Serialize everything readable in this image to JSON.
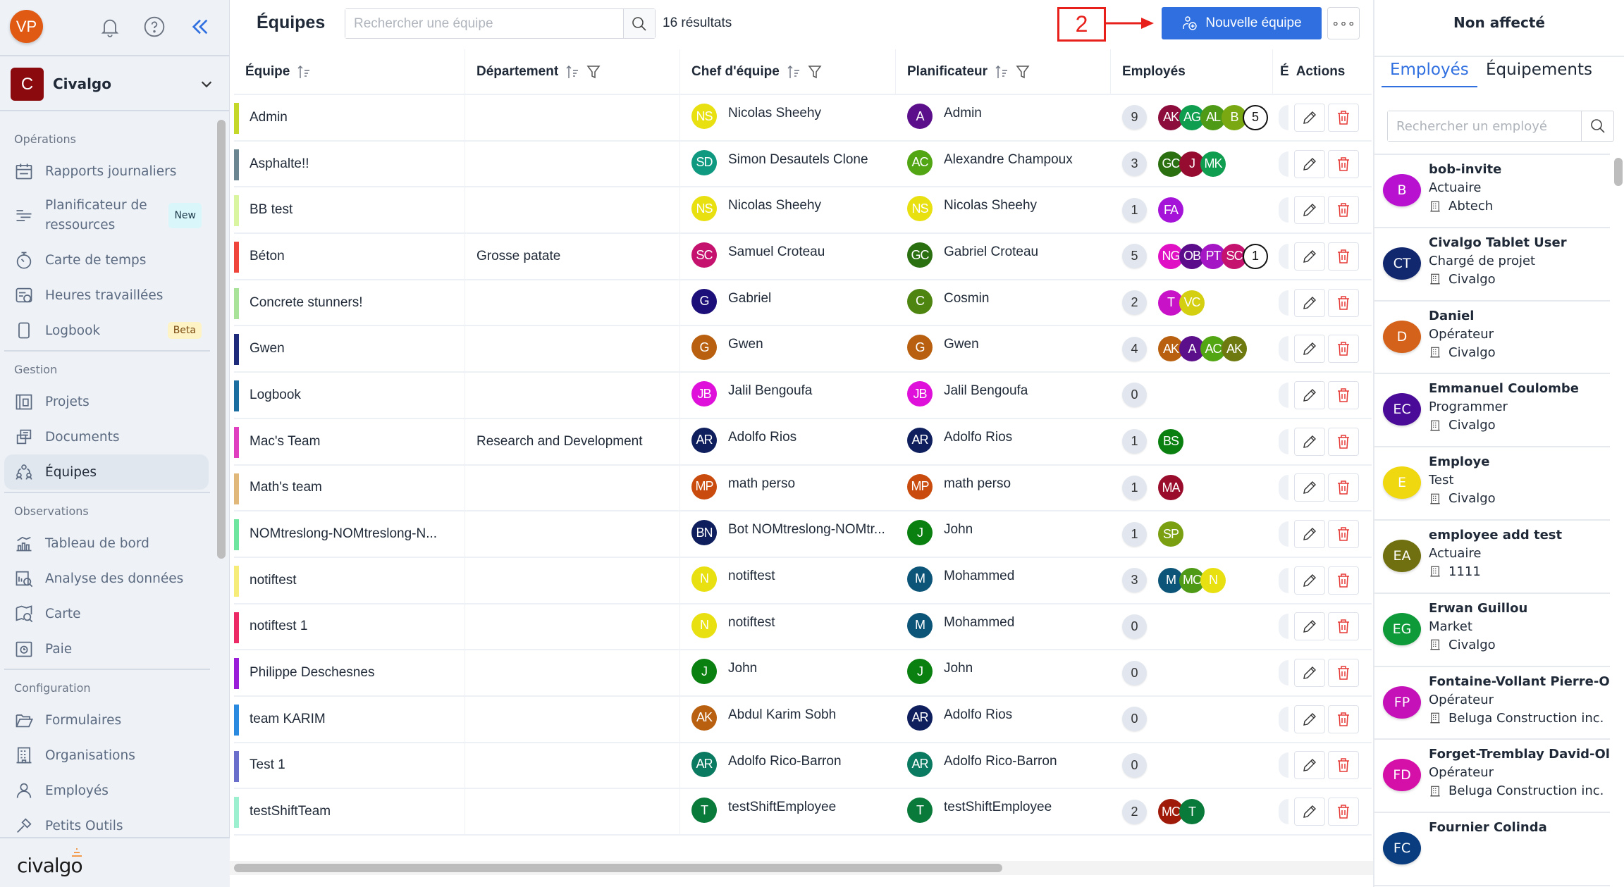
{
  "sidebar": {
    "user_initials": "VP",
    "org": {
      "initial": "C",
      "name": "Civalgo"
    },
    "sections": [
      {
        "label": "Opérations",
        "items": [
          {
            "label": "Rapports journaliers",
            "icon": "calendar-icon"
          },
          {
            "label": "Planificateur de ressources",
            "icon": "planner-icon",
            "badge": "New",
            "badge_bg": "#d9f6fb",
            "badge_fg": "#1f3a4a"
          },
          {
            "label": "Carte de temps",
            "icon": "stopwatch-icon"
          },
          {
            "label": "Heures travaillées",
            "icon": "hours-icon"
          },
          {
            "label": "Logbook",
            "icon": "tablet-icon",
            "badge": "Beta",
            "badge_bg": "#fdf3c4",
            "badge_fg": "#7a4a10"
          }
        ]
      },
      {
        "label": "Gestion",
        "items": [
          {
            "label": "Projets",
            "icon": "project-icon"
          },
          {
            "label": "Documents",
            "icon": "documents-icon"
          },
          {
            "label": "Équipes",
            "icon": "teams-icon",
            "active": true
          }
        ]
      },
      {
        "label": "Observations",
        "items": [
          {
            "label": "Tableau de bord",
            "icon": "dashboard-icon"
          },
          {
            "label": "Analyse des données",
            "icon": "analytics-icon"
          },
          {
            "label": "Carte",
            "icon": "map-icon"
          },
          {
            "label": "Paie",
            "icon": "payroll-icon"
          }
        ]
      },
      {
        "label": "Configuration",
        "items": [
          {
            "label": "Formulaires",
            "icon": "folder-icon"
          },
          {
            "label": "Organisations",
            "icon": "building-icon"
          },
          {
            "label": "Employés",
            "icon": "user-icon"
          },
          {
            "label": "Petits Outils",
            "icon": "tools-icon"
          }
        ]
      }
    ],
    "footer_logo": "civalgo"
  },
  "header": {
    "title": "Équipes",
    "search_placeholder": "Rechercher une équipe",
    "results": "16 résultats",
    "annotation": "2",
    "new_button": "Nouvelle équipe"
  },
  "table": {
    "columns": [
      "Équipe",
      "Département",
      "Chef d'équipe",
      "Planificateur",
      "Employés",
      "É",
      "Actions"
    ],
    "rows": [
      {
        "team": "Admin",
        "color": "#c5d82a",
        "dept": "",
        "chef": {
          "i": "NS",
          "name": "Nicolas Sheehy",
          "c": "#e8e010"
        },
        "plan": {
          "i": "A",
          "name": "Admin",
          "c": "#5b0f8a"
        },
        "count": "9",
        "emps": [
          [
            "AK",
            "#8c0c3c"
          ],
          [
            "AG",
            "#0f9d4f"
          ],
          [
            "AL",
            "#4e9a16"
          ],
          [
            "B",
            "#7aa812"
          ]
        ],
        "more": "5"
      },
      {
        "team": "Asphalte!!",
        "color": "#6b8591",
        "dept": "",
        "chef": {
          "i": "SD",
          "name": "Simon Desautels Clone",
          "c": "#0e9980"
        },
        "plan": {
          "i": "AC",
          "name": "Alexandre Champoux",
          "c": "#52a613"
        },
        "count": "3",
        "emps": [
          [
            "GC",
            "#2a7010"
          ],
          [
            "J",
            "#950c30"
          ],
          [
            "MK",
            "#0f9d4f"
          ]
        ]
      },
      {
        "team": "BB test",
        "color": "#d9f5a0",
        "dept": "",
        "chef": {
          "i": "NS",
          "name": "Nicolas Sheehy",
          "c": "#e8e010"
        },
        "plan": {
          "i": "NS",
          "name": "Nicolas Sheehy",
          "c": "#e8e010"
        },
        "count": "1",
        "emps": [
          [
            "FA",
            "#a513d9"
          ]
        ]
      },
      {
        "team": "Béton",
        "color": "#f0453a",
        "dept": "Grosse patate",
        "chef": {
          "i": "SC",
          "name": "Samuel Croteau",
          "c": "#c4126e"
        },
        "plan": {
          "i": "GC",
          "name": "Gabriel Croteau",
          "c": "#2a7010"
        },
        "count": "5",
        "emps": [
          [
            "NG",
            "#e010c4"
          ],
          [
            "OB",
            "#5a0c8a"
          ],
          [
            "PT",
            "#a517c4"
          ],
          [
            "SC",
            "#c4126e"
          ]
        ],
        "more": "1"
      },
      {
        "team": "Concrete stunners!",
        "color": "#a9e39a",
        "dept": "",
        "chef": {
          "i": "G",
          "name": "Gabriel",
          "c": "#1c0f7a"
        },
        "plan": {
          "i": "C",
          "name": "Cosmin",
          "c": "#4e8510"
        },
        "count": "2",
        "emps": [
          [
            "T",
            "#c812c8"
          ],
          [
            "VC",
            "#d4cf10"
          ]
        ]
      },
      {
        "team": "Gwen",
        "color": "#1e2a7a",
        "dept": "",
        "chef": {
          "i": "G",
          "name": "Gwen",
          "c": "#b8600f"
        },
        "plan": {
          "i": "G",
          "name": "Gwen",
          "c": "#b8600f"
        },
        "count": "4",
        "emps": [
          [
            "AK",
            "#b8600f"
          ],
          [
            "A",
            "#5b0f8a"
          ],
          [
            "AC",
            "#52a613"
          ],
          [
            "AK",
            "#6e7a10"
          ]
        ]
      },
      {
        "team": "Logbook",
        "color": "#1a6fa0",
        "dept": "",
        "chef": {
          "i": "JB",
          "name": "Jalil Bengoufa",
          "c": "#df10d9"
        },
        "plan": {
          "i": "JB",
          "name": "Jalil Bengoufa",
          "c": "#df10d9"
        },
        "count": "0",
        "emps": []
      },
      {
        "team": "Mac's Team",
        "color": "#e040c0",
        "dept": "Research and Development",
        "chef": {
          "i": "AR",
          "name": "Adolfo Rios",
          "c": "#0f1f5e"
        },
        "plan": {
          "i": "AR",
          "name": "Adolfo Rios",
          "c": "#0f1f5e"
        },
        "count": "1",
        "emps": [
          [
            "BS",
            "#0a8010"
          ]
        ]
      },
      {
        "team": "Math's team",
        "color": "#e2b87a",
        "dept": "",
        "chef": {
          "i": "MP",
          "name": "math perso",
          "c": "#c94c0e"
        },
        "plan": {
          "i": "MP",
          "name": "math perso",
          "c": "#c94c0e"
        },
        "count": "1",
        "emps": [
          [
            "MA",
            "#990c2c"
          ]
        ]
      },
      {
        "team": "NOMtreslong-NOMtreslong-N...",
        "color": "#6ee6a0",
        "dept": "",
        "chef": {
          "i": "BN",
          "name": "Bot NOMtreslong-NOMtr...",
          "c": "#0f1f5e"
        },
        "plan": {
          "i": "J",
          "name": "John",
          "c": "#0a8010"
        },
        "count": "1",
        "emps": [
          [
            "SP",
            "#7aa012"
          ]
        ]
      },
      {
        "team": "notiftest",
        "color": "#f5ec7a",
        "dept": "",
        "chef": {
          "i": "N",
          "name": "notiftest",
          "c": "#e8e010"
        },
        "plan": {
          "i": "M",
          "name": "Mohammed",
          "c": "#0c5578"
        },
        "count": "3",
        "emps": [
          [
            "M",
            "#0c5578"
          ],
          [
            "MC",
            "#4e9a16"
          ],
          [
            "N",
            "#e8e010"
          ]
        ]
      },
      {
        "team": "notiftest 1",
        "color": "#ec2b66",
        "dept": "",
        "chef": {
          "i": "N",
          "name": "notiftest",
          "c": "#e8e010"
        },
        "plan": {
          "i": "M",
          "name": "Mohammed",
          "c": "#0c5578"
        },
        "count": "0",
        "emps": []
      },
      {
        "team": "Philippe Deschesnes",
        "color": "#9a1ed8",
        "dept": "",
        "chef": {
          "i": "J",
          "name": "John",
          "c": "#0a8010"
        },
        "plan": {
          "i": "J",
          "name": "John",
          "c": "#0a8010"
        },
        "count": "0",
        "emps": []
      },
      {
        "team": "team KARIM",
        "color": "#2a8ae0",
        "dept": "",
        "chef": {
          "i": "AK",
          "name": "Abdul Karim Sobh",
          "c": "#b8600f"
        },
        "plan": {
          "i": "AR",
          "name": "Adolfo Rios",
          "c": "#0f1f5e"
        },
        "count": "0",
        "emps": []
      },
      {
        "team": "Test 1",
        "color": "#6b6fcc",
        "dept": "",
        "chef": {
          "i": "AR",
          "name": "Adolfo Rico-Barron",
          "c": "#0a7a60"
        },
        "plan": {
          "i": "AR",
          "name": "Adolfo Rico-Barron",
          "c": "#0a7a60"
        },
        "count": "0",
        "emps": []
      },
      {
        "team": "testShiftTeam",
        "color": "#9cf0d0",
        "dept": "",
        "chef": {
          "i": "T",
          "name": "testShiftEmployee",
          "c": "#0a7a3a"
        },
        "plan": {
          "i": "T",
          "name": "testShiftEmployee",
          "c": "#0a7a3a"
        },
        "count": "2",
        "emps": [
          [
            "MC",
            "#a01a0a"
          ],
          [
            "T",
            "#0a7a3a"
          ]
        ]
      }
    ]
  },
  "panel": {
    "title": "Non affecté",
    "tabs": [
      "Employés",
      "Équipements"
    ],
    "search_placeholder": "Rechercher un employé",
    "employees": [
      {
        "i": "B",
        "c": "#b812d0",
        "name": "bob-invite",
        "role": "Actuaire",
        "org": "Abtech"
      },
      {
        "i": "CT",
        "c": "#12286e",
        "name": "Civalgo Tablet User",
        "role": "Chargé de projet",
        "org": "Civalgo"
      },
      {
        "i": "D",
        "c": "#d4621a",
        "name": "Daniel",
        "role": "Opérateur",
        "org": "Civalgo"
      },
      {
        "i": "EC",
        "c": "#4a0c98",
        "name": "Emmanuel Coulombe",
        "role": "Programmer",
        "org": "Civalgo"
      },
      {
        "i": "E",
        "c": "#f0d810",
        "name": "Employe",
        "role": "Test",
        "org": "Civalgo"
      },
      {
        "i": "EA",
        "c": "#707010",
        "name": "employee add test",
        "role": "Actuaire",
        "org": "1111"
      },
      {
        "i": "EG",
        "c": "#0f9a3a",
        "name": "Erwan Guillou",
        "role": "Market",
        "org": "Civalgo"
      },
      {
        "i": "FP",
        "c": "#c412b8",
        "name": "Fontaine-Vollant Pierre-Olivi",
        "role": "Opérateur",
        "org": "Beluga Construction inc."
      },
      {
        "i": "FD",
        "c": "#d410a8",
        "name": "Forget-Tremblay David-Olivi",
        "role": "Opérateur",
        "org": "Beluga Construction inc."
      },
      {
        "i": "FC",
        "c": "#0a3d80",
        "name": "Fournier Colinda",
        "role": "",
        "org": ""
      }
    ]
  },
  "colors": {
    "accent": "#2f6fe0",
    "delete": "#e53935",
    "annotation": "#e8201c"
  }
}
